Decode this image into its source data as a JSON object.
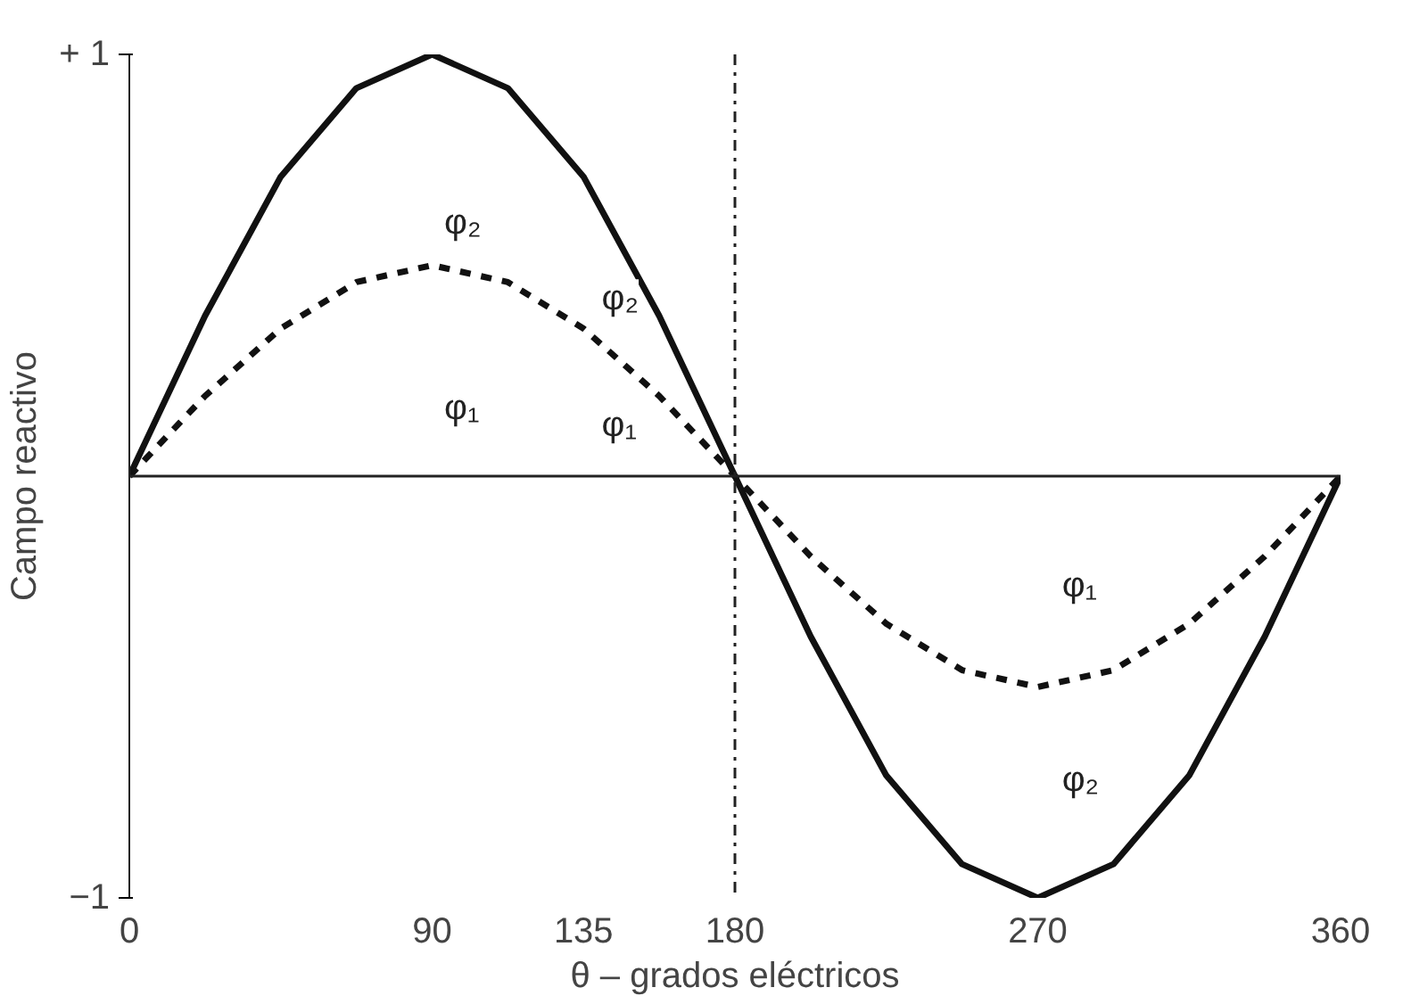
{
  "chart_data": {
    "type": "line",
    "xlabel": "θ – grados eléctricos",
    "ylabel": "Campo reactivo",
    "x": [
      0,
      22.5,
      45,
      67.5,
      90,
      112.5,
      135,
      157.5,
      180,
      202.5,
      225,
      247.5,
      270,
      292.5,
      315,
      337.5,
      360
    ],
    "series": [
      {
        "color": "#111111",
        "line_style": "solid",
        "values": [
          0,
          0.38,
          0.71,
          0.92,
          1,
          0.92,
          0.71,
          0.38,
          0,
          -0.38,
          -0.71,
          -0.92,
          -1,
          -0.92,
          -0.71,
          -0.38,
          0
        ]
      },
      {
        "color": "#111111",
        "line_style": "dashed",
        "values": [
          0,
          0.19,
          0.35,
          0.46,
          0.5,
          0.46,
          0.35,
          0.19,
          0,
          -0.19,
          -0.35,
          -0.46,
          -0.5,
          -0.46,
          -0.35,
          -0.19,
          0
        ]
      }
    ],
    "xlim": [
      0,
      360
    ],
    "ylim": [
      -1,
      1
    ],
    "xticks": [
      0,
      90,
      135,
      180,
      270,
      360
    ],
    "yticks": [
      {
        "value": 1,
        "label": "+ 1"
      },
      {
        "value": -1,
        "label": "−1"
      }
    ],
    "ref_lines": [
      {
        "axis": "y",
        "value": 0,
        "line_style": "solid"
      },
      {
        "axis": "x",
        "value": 180,
        "line_style": "dashdot"
      }
    ],
    "annotations": [
      "φ₂",
      "φ₁",
      "φ₂",
      "φ₁",
      "φ₁",
      "φ₂"
    ],
    "grid": false,
    "marker": "none"
  }
}
